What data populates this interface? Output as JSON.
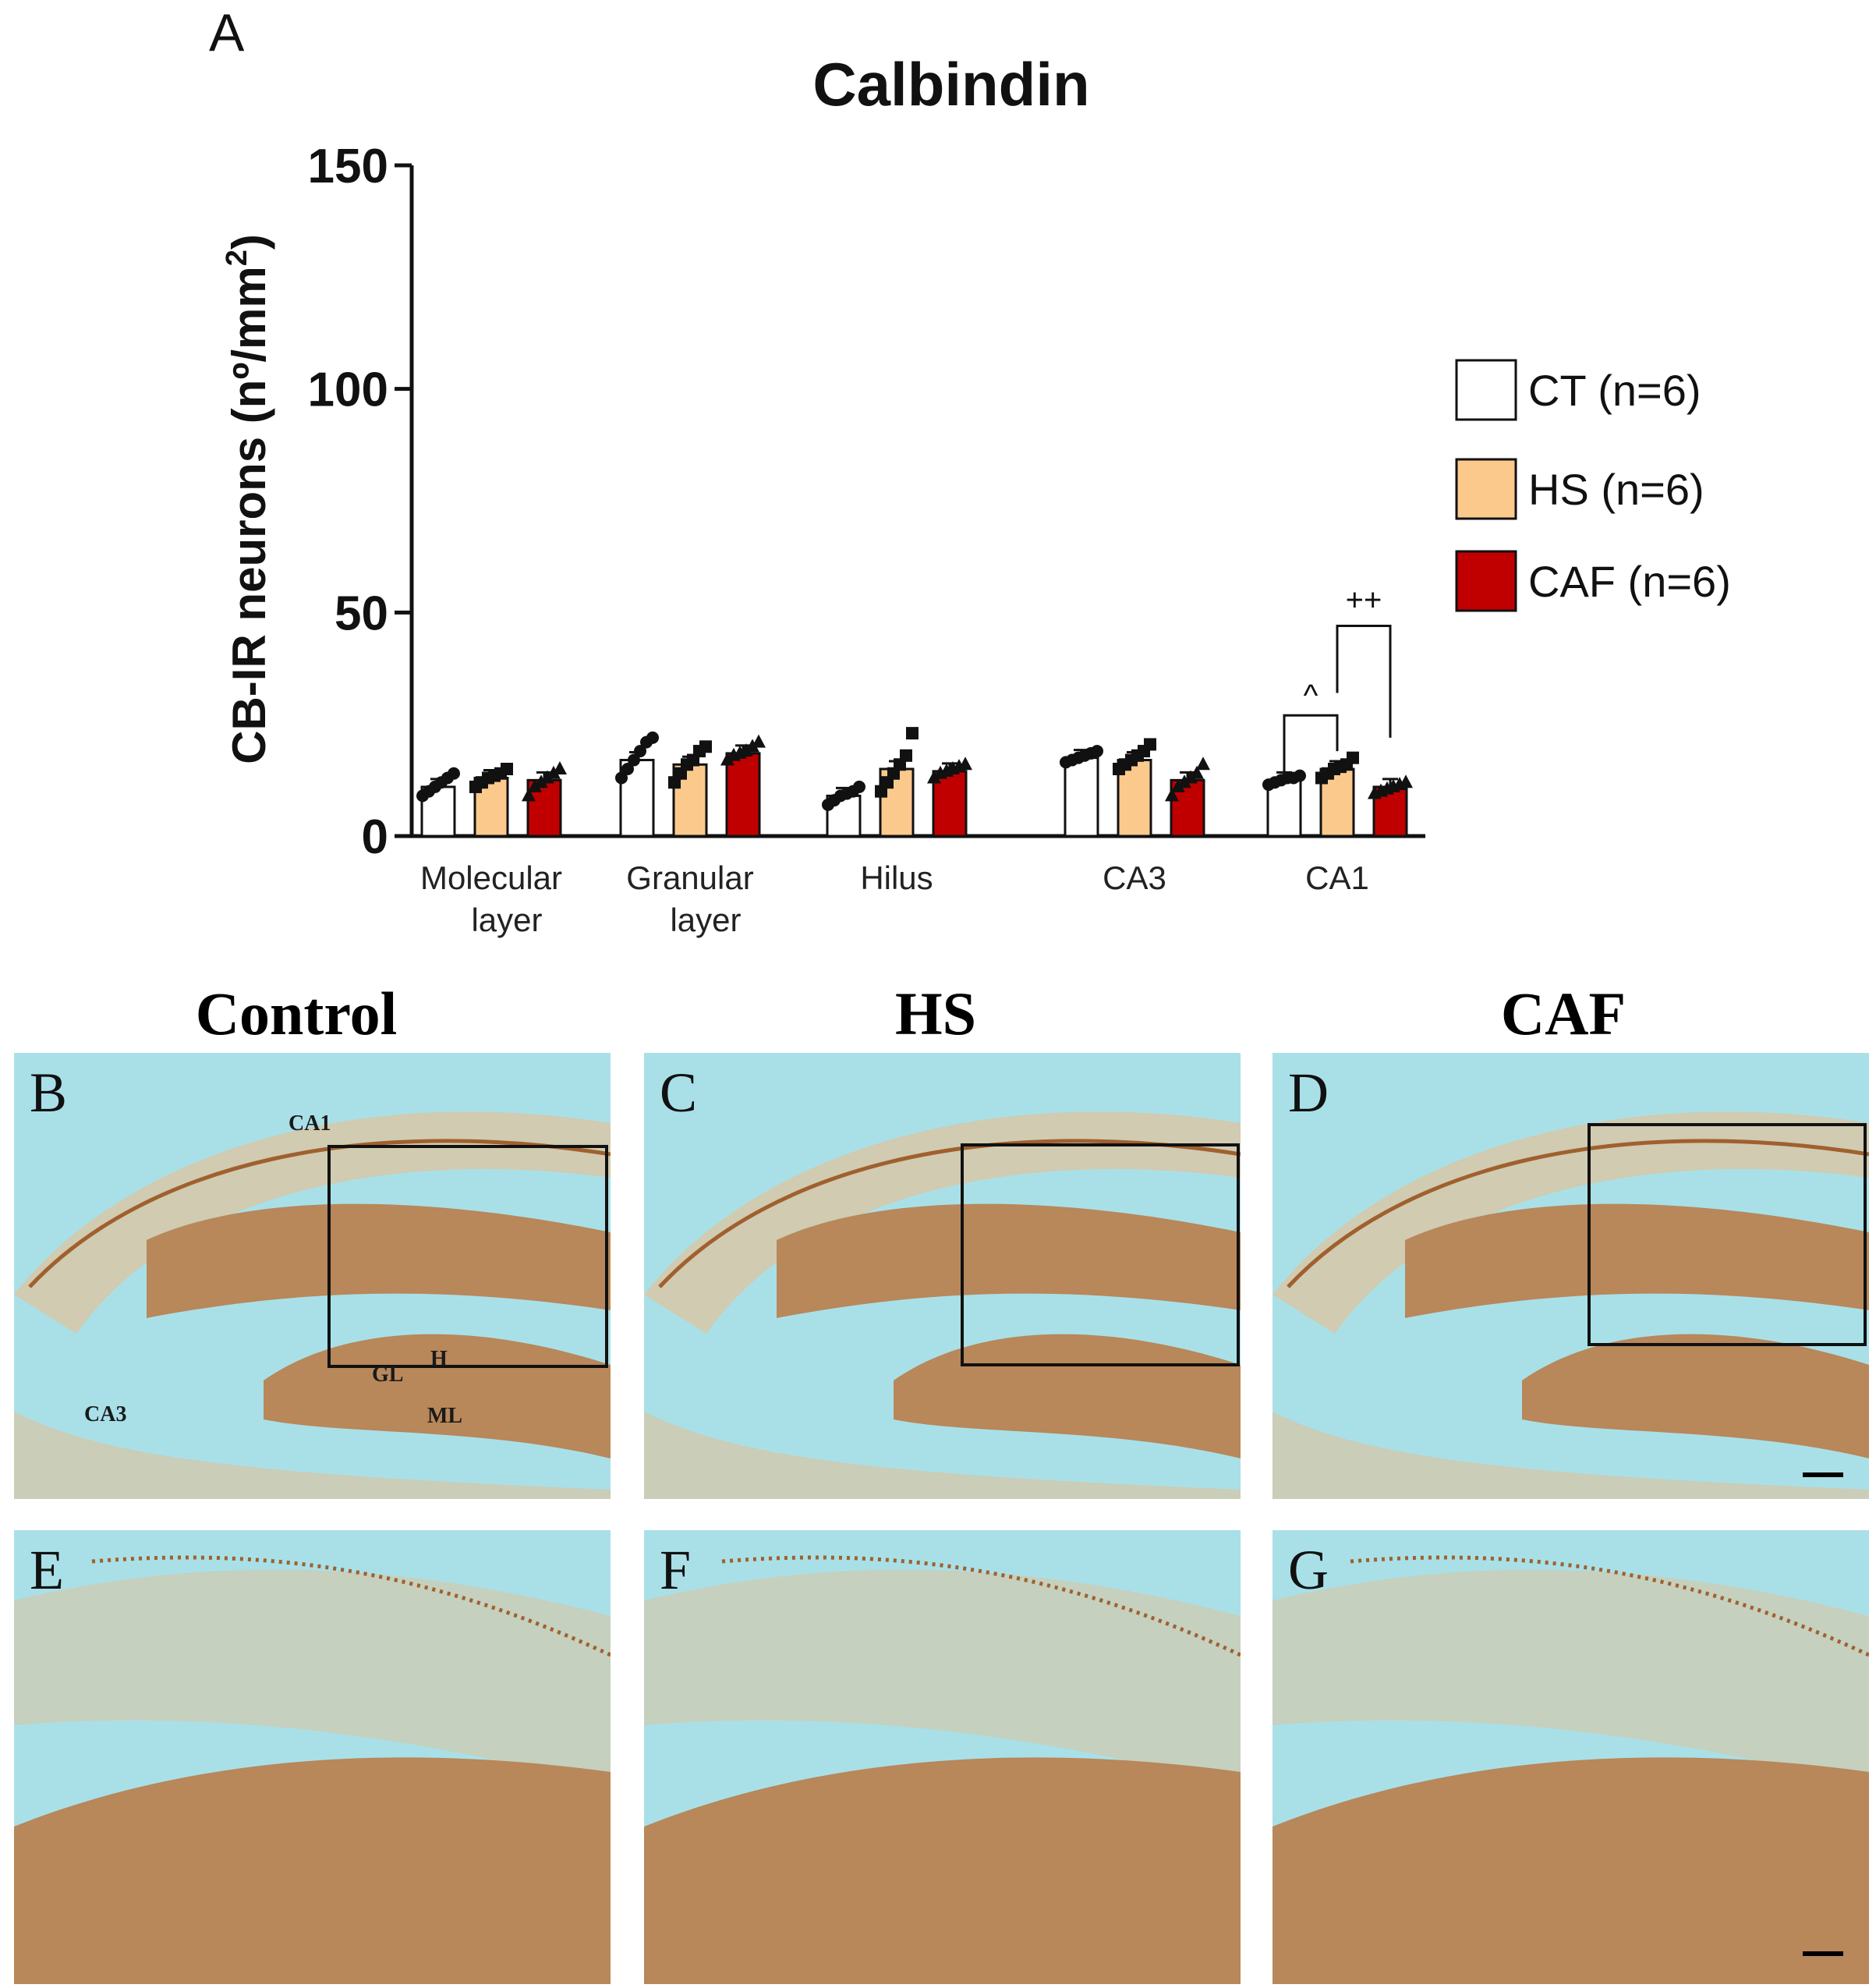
{
  "panel_label": "A",
  "chart_data": {
    "type": "bar",
    "title": "Calbindin",
    "ylabel": "CB-IR neurons (nº/mm²)",
    "ylabel_main": "CB-IR neurons (nº/mm",
    "ylabel_sup": "2",
    "ylabel_close": ")",
    "ylim": [
      0,
      150
    ],
    "yticks": [
      0,
      50,
      100,
      150
    ],
    "categories": [
      [
        "Molecular",
        "layer"
      ],
      [
        "Granular",
        "layer"
      ],
      [
        "Hilus"
      ],
      [
        "CA3"
      ],
      [
        "CA1"
      ]
    ],
    "series": [
      {
        "name": "CT (n=6)",
        "color": "#ffffff",
        "marker": "circle",
        "values": [
          11,
          17,
          9,
          17.5,
          12.5
        ],
        "points": [
          [
            9,
            10,
            11,
            12,
            13,
            14
          ],
          [
            13,
            15,
            17,
            19,
            21,
            22
          ],
          [
            7,
            8,
            9,
            9.5,
            10,
            11
          ],
          [
            16.5,
            17,
            17.5,
            18,
            18.5,
            19
          ],
          [
            11.5,
            12,
            12.5,
            13,
            13,
            13.5
          ]
        ]
      },
      {
        "name": "HS (n=6)",
        "color": "#fcc98c",
        "marker": "square",
        "values": [
          13,
          16,
          15,
          17,
          15
        ],
        "points": [
          [
            11,
            12,
            13,
            13.5,
            14,
            15
          ],
          [
            12,
            14,
            16,
            17,
            19,
            20
          ],
          [
            10,
            12,
            14,
            16,
            18,
            23
          ],
          [
            15,
            16,
            17,
            18,
            19,
            20.5
          ],
          [
            13,
            14,
            15,
            15.5,
            16,
            17.5
          ]
        ]
      },
      {
        "name": "CAF (n=6)",
        "color": "#c00000",
        "marker": "triangle",
        "values": [
          12.5,
          18.5,
          14.5,
          12.5,
          11
        ],
        "points": [
          [
            9,
            11,
            12,
            13,
            14,
            15
          ],
          [
            17,
            18,
            18.5,
            19,
            20,
            21
          ],
          [
            13,
            14,
            14.5,
            15,
            15.5,
            16
          ],
          [
            9,
            11,
            12,
            13,
            14,
            16
          ],
          [
            9.5,
            10,
            10.5,
            11,
            11.5,
            12
          ]
        ]
      }
    ],
    "annotations": [
      {
        "text": "^",
        "between": [
          "CT (n=6)",
          "HS (n=6)"
        ],
        "category": "CA1"
      },
      {
        "text": "++",
        "between": [
          "HS (n=6)",
          "CAF (n=6)"
        ],
        "category": "CA1"
      }
    ],
    "legend_position": "right",
    "grid": false
  },
  "micrographs": {
    "column_titles": [
      "Control",
      "HS",
      "CAF"
    ],
    "panels": [
      {
        "letter": "B"
      },
      {
        "letter": "C"
      },
      {
        "letter": "D"
      },
      {
        "letter": "E"
      },
      {
        "letter": "F"
      },
      {
        "letter": "G"
      }
    ],
    "region_labels": {
      "ca1": "CA1",
      "ca3": "CA3",
      "h": "H",
      "gl": "GL",
      "ml": "ML"
    },
    "colors": {
      "background": "#a9e0e8",
      "tissue_dark": "#b8875a",
      "tissue_light": "#d9c5a2",
      "stain_line": "#a0602e"
    }
  }
}
